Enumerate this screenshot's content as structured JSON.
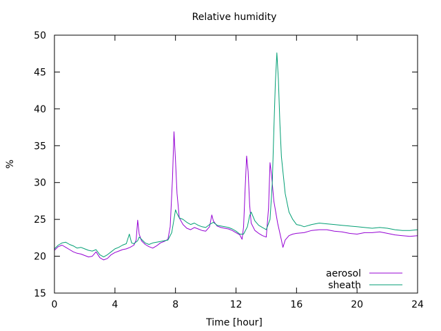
{
  "chart_data": {
    "type": "line",
    "title": "Relative humidity",
    "xlabel": "Time [hour]",
    "ylabel": "%",
    "xlim": [
      0,
      24
    ],
    "ylim": [
      15,
      50
    ],
    "xticks": [
      0,
      4,
      8,
      12,
      16,
      20,
      24
    ],
    "yticks": [
      15,
      20,
      25,
      30,
      35,
      40,
      45,
      50
    ],
    "grid": false,
    "legend_position": "bottom-right",
    "series": [
      {
        "name": "aerosol",
        "color": "#9400d3",
        "points": [
          [
            0.0,
            20.8
          ],
          [
            0.25,
            21.3
          ],
          [
            0.5,
            21.5
          ],
          [
            0.75,
            21.2
          ],
          [
            1.0,
            20.9
          ],
          [
            1.25,
            20.6
          ],
          [
            1.5,
            20.4
          ],
          [
            1.75,
            20.3
          ],
          [
            2.0,
            20.1
          ],
          [
            2.25,
            19.9
          ],
          [
            2.5,
            20.0
          ],
          [
            2.75,
            20.6
          ],
          [
            3.0,
            19.8
          ],
          [
            3.25,
            19.5
          ],
          [
            3.5,
            19.7
          ],
          [
            3.75,
            20.2
          ],
          [
            4.0,
            20.5
          ],
          [
            4.25,
            20.7
          ],
          [
            4.5,
            20.9
          ],
          [
            4.75,
            21.0
          ],
          [
            5.0,
            21.2
          ],
          [
            5.25,
            21.5
          ],
          [
            5.4,
            22.2
          ],
          [
            5.5,
            24.9
          ],
          [
            5.6,
            23.0
          ],
          [
            5.75,
            22.1
          ],
          [
            6.0,
            21.6
          ],
          [
            6.25,
            21.3
          ],
          [
            6.5,
            21.1
          ],
          [
            6.75,
            21.4
          ],
          [
            7.0,
            21.8
          ],
          [
            7.25,
            22.0
          ],
          [
            7.5,
            22.3
          ],
          [
            7.65,
            24.0
          ],
          [
            7.8,
            30.5
          ],
          [
            7.9,
            36.9
          ],
          [
            8.0,
            33.0
          ],
          [
            8.1,
            28.5
          ],
          [
            8.25,
            25.2
          ],
          [
            8.5,
            24.3
          ],
          [
            8.75,
            23.8
          ],
          [
            9.0,
            23.6
          ],
          [
            9.25,
            23.9
          ],
          [
            9.5,
            23.7
          ],
          [
            9.75,
            23.5
          ],
          [
            10.0,
            23.4
          ],
          [
            10.25,
            24.0
          ],
          [
            10.4,
            25.6
          ],
          [
            10.5,
            24.8
          ],
          [
            10.75,
            24.1
          ],
          [
            11.0,
            23.9
          ],
          [
            11.25,
            23.8
          ],
          [
            11.5,
            23.7
          ],
          [
            11.75,
            23.5
          ],
          [
            12.0,
            23.2
          ],
          [
            12.25,
            22.9
          ],
          [
            12.4,
            22.3
          ],
          [
            12.5,
            24.0
          ],
          [
            12.6,
            29.0
          ],
          [
            12.7,
            33.6
          ],
          [
            12.8,
            31.5
          ],
          [
            12.9,
            27.0
          ],
          [
            13.0,
            24.5
          ],
          [
            13.25,
            23.5
          ],
          [
            13.5,
            23.1
          ],
          [
            13.75,
            22.8
          ],
          [
            14.0,
            22.6
          ],
          [
            14.15,
            26.5
          ],
          [
            14.25,
            32.7
          ],
          [
            14.35,
            31.0
          ],
          [
            14.5,
            27.5
          ],
          [
            14.75,
            24.5
          ],
          [
            15.0,
            22.2
          ],
          [
            15.1,
            21.2
          ],
          [
            15.25,
            22.2
          ],
          [
            15.5,
            22.8
          ],
          [
            15.75,
            23.0
          ],
          [
            16.0,
            23.1
          ],
          [
            16.5,
            23.2
          ],
          [
            17.0,
            23.5
          ],
          [
            17.5,
            23.6
          ],
          [
            18.0,
            23.6
          ],
          [
            18.5,
            23.4
          ],
          [
            19.0,
            23.3
          ],
          [
            19.5,
            23.1
          ],
          [
            20.0,
            23.0
          ],
          [
            20.5,
            23.2
          ],
          [
            21.0,
            23.2
          ],
          [
            21.5,
            23.3
          ],
          [
            22.0,
            23.1
          ],
          [
            22.5,
            22.9
          ],
          [
            23.0,
            22.8
          ],
          [
            23.5,
            22.7
          ],
          [
            24.0,
            22.8
          ]
        ]
      },
      {
        "name": "sheath",
        "color": "#009e73",
        "points": [
          [
            0.0,
            21.0
          ],
          [
            0.25,
            21.5
          ],
          [
            0.5,
            21.8
          ],
          [
            0.75,
            21.9
          ],
          [
            1.0,
            21.6
          ],
          [
            1.25,
            21.4
          ],
          [
            1.5,
            21.1
          ],
          [
            1.75,
            21.2
          ],
          [
            2.0,
            21.0
          ],
          [
            2.25,
            20.8
          ],
          [
            2.5,
            20.7
          ],
          [
            2.75,
            20.9
          ],
          [
            3.0,
            20.2
          ],
          [
            3.25,
            19.9
          ],
          [
            3.5,
            20.2
          ],
          [
            3.75,
            20.6
          ],
          [
            4.0,
            21.0
          ],
          [
            4.25,
            21.2
          ],
          [
            4.5,
            21.5
          ],
          [
            4.75,
            21.7
          ],
          [
            4.95,
            23.0
          ],
          [
            5.1,
            21.8
          ],
          [
            5.25,
            21.7
          ],
          [
            5.5,
            22.1
          ],
          [
            5.6,
            22.6
          ],
          [
            5.75,
            22.3
          ],
          [
            6.0,
            21.8
          ],
          [
            6.25,
            21.6
          ],
          [
            6.5,
            21.8
          ],
          [
            6.75,
            21.9
          ],
          [
            7.0,
            22.0
          ],
          [
            7.25,
            22.1
          ],
          [
            7.5,
            22.2
          ],
          [
            7.75,
            23.2
          ],
          [
            7.9,
            25.0
          ],
          [
            8.0,
            26.3
          ],
          [
            8.1,
            25.8
          ],
          [
            8.25,
            25.2
          ],
          [
            8.5,
            25.0
          ],
          [
            8.75,
            24.6
          ],
          [
            9.0,
            24.3
          ],
          [
            9.25,
            24.5
          ],
          [
            9.5,
            24.2
          ],
          [
            9.75,
            24.0
          ],
          [
            10.0,
            23.9
          ],
          [
            10.25,
            24.3
          ],
          [
            10.5,
            24.6
          ],
          [
            10.75,
            24.2
          ],
          [
            11.0,
            24.1
          ],
          [
            11.25,
            24.0
          ],
          [
            11.5,
            23.9
          ],
          [
            11.75,
            23.7
          ],
          [
            12.0,
            23.4
          ],
          [
            12.25,
            23.0
          ],
          [
            12.5,
            23.0
          ],
          [
            12.75,
            24.0
          ],
          [
            12.9,
            25.5
          ],
          [
            13.0,
            26.0
          ],
          [
            13.25,
            24.8
          ],
          [
            13.5,
            24.2
          ],
          [
            13.75,
            23.9
          ],
          [
            14.0,
            23.6
          ],
          [
            14.25,
            25.0
          ],
          [
            14.4,
            30.0
          ],
          [
            14.5,
            37.0
          ],
          [
            14.6,
            43.5
          ],
          [
            14.7,
            47.6
          ],
          [
            14.8,
            44.0
          ],
          [
            14.9,
            38.0
          ],
          [
            15.0,
            33.5
          ],
          [
            15.25,
            28.5
          ],
          [
            15.5,
            26.0
          ],
          [
            15.75,
            25.0
          ],
          [
            16.0,
            24.3
          ],
          [
            16.25,
            24.2
          ],
          [
            16.5,
            24.0
          ],
          [
            17.0,
            24.3
          ],
          [
            17.5,
            24.5
          ],
          [
            18.0,
            24.4
          ],
          [
            18.5,
            24.3
          ],
          [
            19.0,
            24.2
          ],
          [
            19.5,
            24.1
          ],
          [
            20.0,
            24.0
          ],
          [
            20.5,
            23.9
          ],
          [
            21.0,
            23.8
          ],
          [
            21.5,
            23.9
          ],
          [
            22.0,
            23.8
          ],
          [
            22.5,
            23.6
          ],
          [
            23.0,
            23.5
          ],
          [
            23.5,
            23.5
          ],
          [
            24.0,
            23.6
          ]
        ]
      }
    ]
  }
}
